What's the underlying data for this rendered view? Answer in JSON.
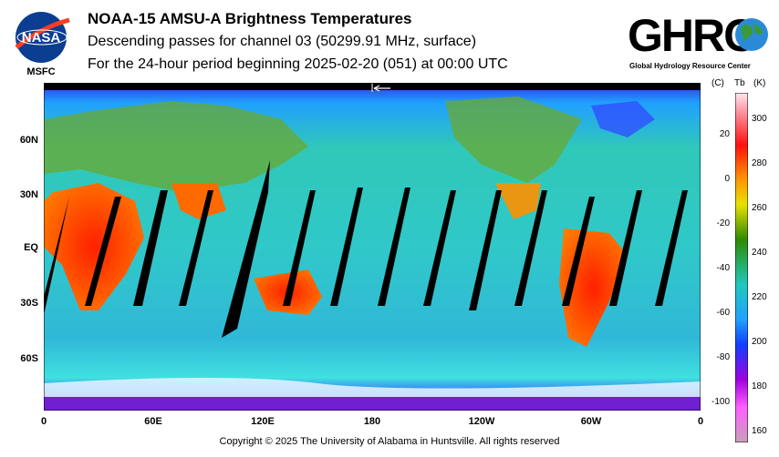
{
  "header": {
    "title": "NOAA-15 AMSU-A Brightness Temperatures",
    "subtitle": "Descending passes for channel 03 (50299.91 MHz, surface)",
    "period": "For the 24-hour period beginning 2025-02-20 (051) at 00:00 UTC"
  },
  "logos": {
    "nasa_text": "NASA",
    "msfc_text": "MSFC",
    "ghrc_text": "GHRC",
    "ghrc_subtitle": "Global Hydrology Resource Center"
  },
  "map": {
    "lat_labels": [
      "60N",
      "30N",
      "EQ",
      "30S",
      "60S"
    ],
    "lon_labels": [
      "0",
      "60E",
      "120E",
      "180",
      "120W",
      "60W",
      "0"
    ],
    "orbit_direction_icon": "arrow-left-icon"
  },
  "colorbar": {
    "unit_c": "(C)",
    "unit_tb": "Tb",
    "unit_k": "(K)",
    "celsius_ticks": [
      "20",
      "0",
      "-20",
      "-40",
      "-60",
      "-80",
      "-100"
    ],
    "kelvin_ticks": [
      "300",
      "280",
      "260",
      "240",
      "220",
      "200",
      "180",
      "160"
    ],
    "colors": [
      "#ff0000",
      "#ff9900",
      "#e8e000",
      "#2e8b00",
      "#20c8c0",
      "#1040ff",
      "#a000e0",
      "#e0a0c0"
    ]
  },
  "footer": {
    "copyright": "Copyright © 2025 The University of Alabama in Huntsville.  All rights reserved"
  }
}
